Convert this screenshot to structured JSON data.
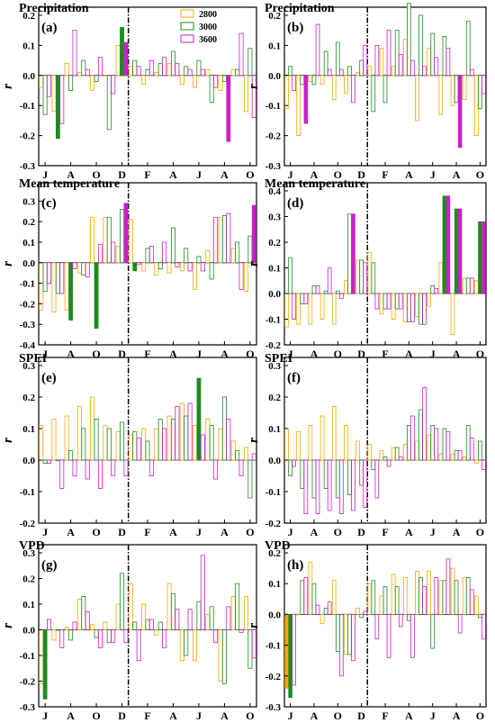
{
  "colors": {
    "s2800": "#f5a800",
    "s3000": "#1e8b1e",
    "s3600": "#cc1fcc"
  },
  "chart_data": [
    {
      "id": "a",
      "type": "bar",
      "title": "Precipitation",
      "panel_label": "(a)",
      "ylabel": "r",
      "ylim": [
        -0.3,
        0.2
      ],
      "yticks": [
        "0.2",
        "0.1",
        "0.0",
        "-0.1",
        "-0.2",
        "-0.3"
      ],
      "ytick_values": [
        0.2,
        0.1,
        0.0,
        -0.1,
        -0.2,
        -0.3
      ],
      "xticklabels": [
        "J",
        "A",
        "O",
        "D",
        "F",
        "A",
        "J",
        "A",
        "O"
      ],
      "months": [
        "Jun",
        "Jul",
        "Aug",
        "Sep",
        "Oct",
        "Nov",
        "Dec",
        "Jan",
        "Feb",
        "Mar",
        "Apr",
        "May",
        "Jun",
        "Jul",
        "Aug",
        "Sep",
        "Oct"
      ],
      "divider_after_month": "Dec",
      "legend": [
        "2800",
        "3000",
        "3600"
      ],
      "series": [
        {
          "name": "2800",
          "values": [
            -0.04,
            -0.12,
            0.04,
            0.01,
            -0.05,
            0.0,
            0.1,
            0.03,
            -0.03,
            0.01,
            0.04,
            -0.03,
            -0.04,
            0.02,
            -0.05,
            0.02,
            -0.12
          ],
          "significant": []
        },
        {
          "name": "3000",
          "values": [
            -0.13,
            -0.21,
            -0.05,
            0.05,
            -0.02,
            -0.18,
            0.16,
            0.05,
            0.02,
            0.04,
            0.08,
            0.03,
            0.05,
            -0.09,
            -0.02,
            0.02,
            0.09
          ],
          "significant": [
            1,
            6
          ]
        },
        {
          "name": "3600",
          "values": [
            -0.07,
            -0.16,
            0.15,
            0.02,
            0.06,
            -0.06,
            0.11,
            0.03,
            0.05,
            0.06,
            0.04,
            0.02,
            0.02,
            -0.04,
            -0.22,
            0.14,
            -0.14
          ],
          "significant": [
            6,
            14
          ]
        }
      ]
    },
    {
      "id": "b",
      "type": "bar",
      "title": "Precipitation",
      "panel_label": "(b)",
      "ylabel": "r",
      "ylim": [
        -0.3,
        0.2
      ],
      "yticks": [
        "0.2",
        "0.1",
        "0.0",
        "-0.1",
        "-0.2",
        "-0.3"
      ],
      "ytick_values": [
        0.2,
        0.1,
        0.0,
        -0.1,
        -0.2,
        -0.3
      ],
      "xticklabels": [
        "J",
        "A",
        "O",
        "D",
        "F",
        "A",
        "J",
        "A",
        "O"
      ],
      "months": [
        "Jun",
        "Jul",
        "Aug",
        "Sep",
        "Oct",
        "Nov",
        "Dec",
        "Jan",
        "Feb",
        "Mar",
        "Apr",
        "May",
        "Jun",
        "Jul",
        "Aug",
        "Sep",
        "Oct"
      ],
      "divider_after_month": "Dec",
      "series": [
        {
          "name": "2800",
          "values": [
            -0.11,
            -0.2,
            -0.02,
            -0.03,
            -0.08,
            -0.06,
            0.01,
            0.03,
            0.09,
            0.03,
            0.12,
            -0.15,
            0.09,
            -0.13,
            -0.1,
            -0.08,
            -0.2
          ],
          "significant": []
        },
        {
          "name": "3000",
          "values": [
            0.03,
            -0.03,
            -0.03,
            0.08,
            0.11,
            0.03,
            0.05,
            -0.12,
            -0.09,
            0.15,
            0.24,
            0.2,
            0.14,
            0.13,
            -0.09,
            0.18,
            -0.11
          ],
          "significant": []
        },
        {
          "name": "3600",
          "values": [
            -0.05,
            -0.16,
            0.17,
            0.02,
            0.02,
            -0.09,
            0.1,
            0.1,
            0.15,
            0.07,
            0.05,
            0.03,
            0.06,
            0.09,
            -0.24,
            0.02,
            -0.06
          ],
          "significant": [
            1,
            14
          ]
        }
      ]
    },
    {
      "id": "c",
      "type": "bar",
      "title": "Mean temperature",
      "panel_label": "(c)",
      "ylabel": "r",
      "ylim": [
        -0.4,
        0.35
      ],
      "yticks": [
        "0.3",
        "0.2",
        "0.1",
        "0.0",
        "-0.1",
        "-0.2",
        "-0.3",
        "-0.4"
      ],
      "ytick_values": [
        0.3,
        0.2,
        0.1,
        0.0,
        -0.1,
        -0.2,
        -0.3,
        -0.4
      ],
      "xticklabels": [
        "J",
        "A",
        "O",
        "D",
        "F",
        "A",
        "J",
        "A",
        "O"
      ],
      "months": [
        "Jun",
        "Jul",
        "Aug",
        "Sep",
        "Oct",
        "Nov",
        "Dec",
        "Jan",
        "Feb",
        "Mar",
        "Apr",
        "May",
        "Jun",
        "Jul",
        "Aug",
        "Sep",
        "Oct"
      ],
      "divider_after_month": "Dec",
      "series": [
        {
          "name": "2800",
          "values": [
            -0.23,
            -0.24,
            -0.23,
            -0.05,
            0.22,
            0.22,
            0.08,
            0.21,
            -0.04,
            -0.06,
            -0.05,
            -0.04,
            -0.13,
            0.06,
            0.22,
            0.07,
            -0.14
          ],
          "significant": []
        },
        {
          "name": "3000",
          "values": [
            -0.14,
            -0.15,
            -0.28,
            -0.06,
            -0.32,
            0.22,
            0.26,
            -0.04,
            0.07,
            -0.03,
            0.17,
            0.07,
            0.03,
            -0.08,
            0.23,
            0.1,
            0.13
          ],
          "significant": [
            2,
            4,
            7
          ]
        },
        {
          "name": "3600",
          "values": [
            -0.1,
            -0.15,
            -0.03,
            -0.07,
            0.09,
            0.1,
            0.29,
            -0.01,
            0.08,
            0.1,
            -0.02,
            -0.04,
            -0.04,
            0.22,
            0.24,
            -0.13,
            0.28
          ],
          "significant": [
            6,
            16
          ]
        }
      ]
    },
    {
      "id": "d",
      "type": "bar",
      "title": "Mean temperature",
      "panel_label": "(d)",
      "ylabel": "r",
      "ylim": [
        -0.2,
        0.4
      ],
      "yticks": [
        "0.4",
        "0.3",
        "0.2",
        "0.1",
        "0.0",
        "-0.1",
        "-0.2"
      ],
      "ytick_values": [
        0.4,
        0.3,
        0.2,
        0.1,
        0.0,
        -0.1,
        -0.2
      ],
      "xticklabels": [
        "J",
        "A",
        "O",
        "D",
        "F",
        "A",
        "J",
        "A",
        "O"
      ],
      "months": [
        "Jun",
        "Jul",
        "Aug",
        "Sep",
        "Oct",
        "Nov",
        "Dec",
        "Jan",
        "Feb",
        "Mar",
        "Apr",
        "May",
        "Jun",
        "Jul",
        "Aug",
        "Sep",
        "Oct"
      ],
      "divider_after_month": "Dec",
      "series": [
        {
          "name": "2800",
          "values": [
            -0.13,
            -0.12,
            -0.12,
            -0.1,
            -0.12,
            0.05,
            0.13,
            0.16,
            -0.08,
            -0.1,
            -0.11,
            -0.09,
            -0.05,
            0.12,
            -0.16,
            0.06,
            0.05
          ],
          "significant": []
        },
        {
          "name": "3000",
          "values": [
            0.14,
            -0.04,
            0.03,
            0.01,
            0.01,
            0.31,
            0.13,
            0.12,
            -0.06,
            -0.06,
            -0.11,
            -0.12,
            0.03,
            0.38,
            0.33,
            0.06,
            0.28
          ],
          "significant": [
            13,
            14,
            16
          ]
        },
        {
          "name": "3600",
          "values": [
            -0.1,
            -0.04,
            0.03,
            0.1,
            -0.02,
            0.31,
            0.12,
            -0.06,
            -0.06,
            -0.06,
            -0.11,
            -0.12,
            0.02,
            0.38,
            0.33,
            0.06,
            0.28
          ],
          "significant": [
            5,
            13,
            14,
            16
          ]
        }
      ]
    },
    {
      "id": "e",
      "type": "bar",
      "title": "SPEI",
      "panel_label": "(e)",
      "ylabel": "r",
      "ylim": [
        -0.2,
        0.3
      ],
      "yticks": [
        "0.3",
        "0.2",
        "0.1",
        "0.0",
        "-0.1",
        "-0.2"
      ],
      "ytick_values": [
        0.3,
        0.2,
        0.1,
        0.0,
        -0.1,
        -0.2
      ],
      "xticklabels": [
        "J",
        "A",
        "O",
        "D",
        "F",
        "A",
        "J",
        "A",
        "O"
      ],
      "months": [
        "Jun",
        "Jul",
        "Aug",
        "Sep",
        "Oct",
        "Nov",
        "Dec",
        "Jan",
        "Feb",
        "Mar",
        "Apr",
        "May",
        "Jun",
        "Jul",
        "Aug",
        "Sep",
        "Oct"
      ],
      "divider_after_month": "Dec",
      "series": [
        {
          "name": "2800",
          "values": [
            0.11,
            0.13,
            0.14,
            0.17,
            0.2,
            0.11,
            0.09,
            0.08,
            0.1,
            0.1,
            0.14,
            0.18,
            0.11,
            0.13,
            0.1,
            0.06,
            0.04
          ],
          "significant": []
        },
        {
          "name": "3000",
          "values": [
            -0.01,
            0.0,
            0.03,
            0.1,
            0.13,
            0.1,
            0.12,
            0.09,
            0.06,
            0.13,
            0.13,
            0.14,
            0.26,
            0.11,
            0.2,
            0.03,
            -0.12
          ],
          "significant": [
            12
          ]
        },
        {
          "name": "3600",
          "values": [
            -0.01,
            -0.09,
            -0.05,
            -0.06,
            -0.09,
            -0.05,
            -0.05,
            0.07,
            -0.05,
            0.1,
            0.17,
            0.18,
            0.08,
            -0.06,
            0.13,
            -0.05,
            0.02
          ],
          "significant": []
        }
      ]
    },
    {
      "id": "f",
      "type": "bar",
      "title": "SPEI",
      "panel_label": "(f)",
      "ylabel": "r",
      "ylim": [
        -0.2,
        0.3
      ],
      "yticks": [
        "0.3",
        "0.2",
        "0.1",
        "0.0",
        "-0.1",
        "-0.2"
      ],
      "ytick_values": [
        0.3,
        0.2,
        0.1,
        0.0,
        -0.1,
        -0.2
      ],
      "xticklabels": [
        "J",
        "A",
        "O",
        "D",
        "F",
        "A",
        "J",
        "A",
        "O"
      ],
      "months": [
        "Jun",
        "Jul",
        "Aug",
        "Sep",
        "Oct",
        "Nov",
        "Dec",
        "Jan",
        "Feb",
        "Mar",
        "Apr",
        "May",
        "Jun",
        "Jul",
        "Aug",
        "Sep",
        "Oct"
      ],
      "divider_after_month": "Dec",
      "series": [
        {
          "name": "2800",
          "values": [
            0.1,
            0.09,
            0.11,
            0.14,
            0.17,
            0.11,
            0.06,
            0.05,
            0.03,
            0.04,
            0.05,
            0.06,
            0.08,
            0.02,
            0.02,
            0.01,
            -0.01
          ],
          "significant": []
        },
        {
          "name": "3000",
          "values": [
            -0.05,
            -0.09,
            -0.12,
            -0.09,
            -0.12,
            -0.11,
            -0.08,
            -0.03,
            0.01,
            0.04,
            0.11,
            0.16,
            0.11,
            0.1,
            0.03,
            0.11,
            0.06
          ],
          "significant": []
        },
        {
          "name": "3600",
          "values": [
            -0.02,
            -0.17,
            -0.17,
            -0.16,
            -0.17,
            -0.16,
            -0.15,
            -0.12,
            -0.02,
            0.01,
            0.14,
            0.23,
            0.1,
            0.09,
            0.03,
            0.07,
            -0.03
          ],
          "significant": []
        }
      ]
    },
    {
      "id": "g",
      "type": "bar",
      "title": "VPD",
      "panel_label": "(g)",
      "ylabel": "r",
      "ylim": [
        -0.3,
        0.3
      ],
      "yticks": [
        "0.3",
        "0.2",
        "0.1",
        "0.0",
        "-0.1",
        "-0.2",
        "-0.3"
      ],
      "ytick_values": [
        0.3,
        0.2,
        0.1,
        0.0,
        -0.1,
        -0.2,
        -0.3
      ],
      "xticklabels": [
        "J",
        "A",
        "O",
        "D",
        "F",
        "A",
        "J",
        "A",
        "O"
      ],
      "months": [
        "Jun",
        "Jul",
        "Aug",
        "Sep",
        "Oct",
        "Nov",
        "Dec",
        "Jan",
        "Feb",
        "Mar",
        "Apr",
        "May",
        "Jun",
        "Jul",
        "Aug",
        "Sep",
        "Oct"
      ],
      "divider_after_month": "Dec",
      "series": [
        {
          "name": "2800",
          "values": [
            -0.21,
            -0.04,
            0.01,
            0.12,
            0.02,
            0.03,
            0.1,
            0.18,
            0.1,
            -0.02,
            0.18,
            -0.12,
            -0.12,
            0.06,
            -0.2,
            0.13,
            0.13
          ],
          "significant": []
        },
        {
          "name": "3000",
          "values": [
            -0.27,
            0.0,
            -0.04,
            0.13,
            -0.03,
            -0.05,
            0.22,
            0.03,
            0.04,
            0.03,
            0.14,
            -0.1,
            0.11,
            0.09,
            -0.21,
            0.18,
            -0.15
          ],
          "significant": [
            0
          ]
        },
        {
          "name": "3600",
          "values": [
            0.04,
            -0.07,
            0.03,
            0.07,
            -0.07,
            -0.05,
            -0.05,
            -0.12,
            0.04,
            -0.07,
            0.08,
            0.08,
            0.29,
            -0.05,
            0.09,
            -0.01,
            -0.11
          ],
          "significant": []
        }
      ]
    },
    {
      "id": "h",
      "type": "bar",
      "title": "VPD",
      "panel_label": "(h)",
      "ylabel": "r",
      "ylim": [
        -0.3,
        0.2
      ],
      "yticks": [
        "0.2",
        "0.1",
        "0.0",
        "-0.1",
        "-0.2",
        "-0.3"
      ],
      "ytick_values": [
        0.2,
        0.1,
        0.0,
        -0.1,
        -0.2,
        -0.3
      ],
      "xticklabels": [
        "J",
        "A",
        "O",
        "D",
        "F",
        "A",
        "J",
        "A",
        "O"
      ],
      "months": [
        "Jun",
        "Jul",
        "Aug",
        "Sep",
        "Oct",
        "Nov",
        "Dec",
        "Jan",
        "Feb",
        "Mar",
        "Apr",
        "May",
        "Jun",
        "Jul",
        "Aug",
        "Sep",
        "Oct"
      ],
      "divider_after_month": "Dec",
      "series": [
        {
          "name": "2800",
          "values": [
            -0.24,
            0.0,
            0.17,
            -0.03,
            0.11,
            -0.13,
            0.02,
            0.1,
            0.06,
            0.13,
            0.12,
            0.14,
            0.14,
            0.11,
            0.15,
            0.12,
            0.06
          ],
          "significant": [
            0
          ]
        },
        {
          "name": "3000",
          "values": [
            -0.27,
            0.11,
            0.1,
            0.02,
            -0.12,
            -0.13,
            -0.01,
            0.11,
            0.09,
            0.09,
            -0.02,
            0.12,
            -0.11,
            0.11,
            0.11,
            0.12,
            -0.01
          ],
          "significant": [
            0
          ]
        },
        {
          "name": "3600",
          "values": [
            -0.23,
            0.12,
            0.03,
            0.04,
            -0.2,
            -0.15,
            0.01,
            -0.08,
            -0.14,
            -0.04,
            -0.14,
            0.09,
            0.12,
            0.18,
            -0.06,
            0.08,
            -0.08
          ],
          "significant": []
        }
      ]
    }
  ]
}
